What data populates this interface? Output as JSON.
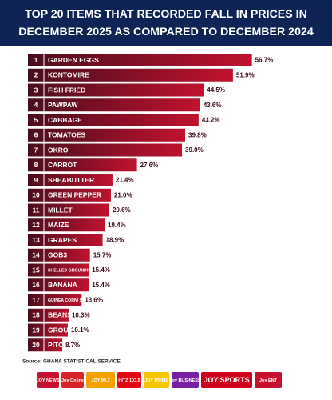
{
  "chart_data": {
    "type": "bar",
    "title": [
      "TOP 20 ITEMS THAT RECORDED FALL IN PRICES IN",
      "DECEMBER 2025 AS COMPARED TO DECEMBER 2024"
    ],
    "ranks": [
      "1",
      "2",
      "3",
      "4",
      "5",
      "6",
      "7",
      "8",
      "9",
      "10",
      "11",
      "12",
      "13",
      "14",
      "15",
      "16",
      "17",
      "18",
      "19",
      "20"
    ],
    "categories": [
      "GARDEN EGGS",
      "KONTOMIRE",
      "FISH FRIED",
      "PAWPAW",
      "CABBAGE",
      "TOMATOES",
      "OKRO",
      "CARROT",
      "SHEABUTTER",
      "GREEN PEPPER",
      "MILLET",
      "MAIZE",
      "GRAPES",
      "GOB3",
      "SHELLED GROUNDNUTS",
      "BANANA",
      "GUINEA CORN/ SORGHUM",
      "BEANS",
      "GROUNDNUT OIL",
      "PITO"
    ],
    "values": [
      56.7,
      51.9,
      44.5,
      43.6,
      43.2,
      39.8,
      39.0,
      27.6,
      21.4,
      21.0,
      20.6,
      19.4,
      18.9,
      15.7,
      15.4,
      15.4,
      13.6,
      10.3,
      10.1,
      8.7
    ],
    "value_labels": [
      "56.7%",
      "51.9%",
      "44.5%",
      "43.6%",
      "43.2%",
      "39.8%",
      "39.0%",
      "27.6%",
      "21.4%",
      "21.0%",
      "20.6%",
      "19.4%",
      "18.9%",
      "15.7%",
      "15.4%",
      "15.4%",
      "13.6%",
      "10.3%",
      "10.1%",
      "8.7%"
    ],
    "color": "#c0122f",
    "source": "Source: GHANA STATISTICAL SERVICE",
    "logos": [
      "JOY NEWS",
      "Joy Online",
      "JOY 99.7",
      "HITZ 103.9",
      "JOY PRIME",
      "Joy BUSINESS",
      "JOY SPORTS",
      "Joy ENT"
    ]
  }
}
